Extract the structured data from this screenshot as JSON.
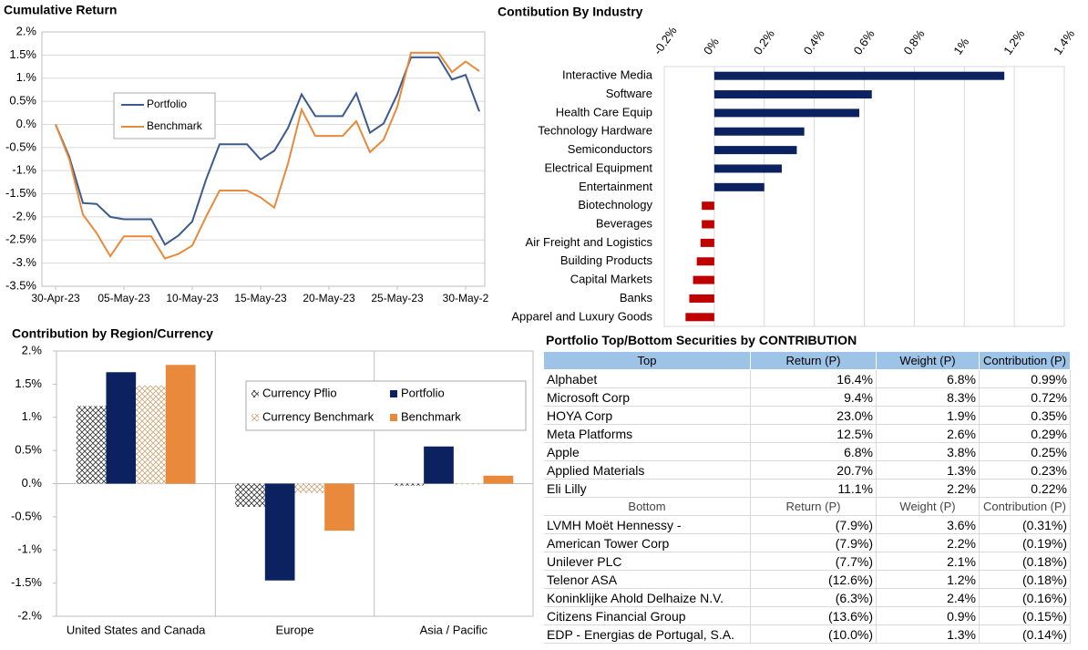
{
  "chart_data": [
    {
      "type": "line",
      "title": "Cumulative Return",
      "x": [
        "2023-04-30",
        "2023-05-01",
        "2023-05-02",
        "2023-05-03",
        "2023-05-04",
        "2023-05-05",
        "2023-05-06",
        "2023-05-07",
        "2023-05-08",
        "2023-05-09",
        "2023-05-10",
        "2023-05-11",
        "2023-05-12",
        "2023-05-13",
        "2023-05-14",
        "2023-05-15",
        "2023-05-16",
        "2023-05-17",
        "2023-05-18",
        "2023-05-19",
        "2023-05-20",
        "2023-05-21",
        "2023-05-22",
        "2023-05-23",
        "2023-05-24",
        "2023-05-25",
        "2023-05-26",
        "2023-05-27",
        "2023-05-28",
        "2023-05-29",
        "2023-05-30",
        "2023-05-31"
      ],
      "series": [
        {
          "name": "Portfolio",
          "color": "#3b5a8e",
          "values": [
            0,
            -0.7,
            -1.7,
            -1.72,
            -2.0,
            -2.05,
            -2.05,
            -2.05,
            -2.6,
            -2.4,
            -2.1,
            -1.2,
            -0.43,
            -0.43,
            -0.43,
            -0.76,
            -0.57,
            -0.08,
            0.65,
            0.18,
            0.18,
            0.18,
            0.67,
            -0.18,
            0.02,
            0.65,
            1.45,
            1.45,
            1.45,
            0.97,
            1.07,
            0.28
          ]
        },
        {
          "name": "Benchmark",
          "color": "#e8893b",
          "values": [
            0,
            -0.75,
            -1.95,
            -2.35,
            -2.85,
            -2.42,
            -2.42,
            -2.42,
            -2.9,
            -2.8,
            -2.62,
            -2.0,
            -1.43,
            -1.43,
            -1.43,
            -1.58,
            -1.8,
            -0.85,
            0.32,
            -0.25,
            -0.25,
            -0.25,
            0.07,
            -0.6,
            -0.33,
            0.38,
            1.55,
            1.55,
            1.55,
            1.13,
            1.36,
            1.15
          ]
        }
      ],
      "xlim": [
        "2023-04-29",
        "2023-05-31"
      ],
      "xticks": [
        {
          "value": "2023-04-30",
          "label": "30-Apr-23"
        },
        {
          "value": "2023-05-05",
          "label": "05-May-23"
        },
        {
          "value": "2023-05-10",
          "label": "10-May-23"
        },
        {
          "value": "2023-05-15",
          "label": "15-May-23"
        },
        {
          "value": "2023-05-20",
          "label": "20-May-23"
        },
        {
          "value": "2023-05-25",
          "label": "25-May-23"
        },
        {
          "value": "2023-05-30",
          "label": "30-May-2"
        }
      ],
      "ylim": [
        -3.5,
        2
      ],
      "yticks": [
        {
          "value": 2,
          "label": "2.%"
        },
        {
          "value": 1.5,
          "label": "1.5%"
        },
        {
          "value": 1,
          "label": "1.%"
        },
        {
          "value": 0.5,
          "label": "0.5%"
        },
        {
          "value": 0,
          "label": "0.%"
        },
        {
          "value": -0.5,
          "label": "-0.5%"
        },
        {
          "value": -1,
          "label": "-1.%"
        },
        {
          "value": -1.5,
          "label": "-1.5%"
        },
        {
          "value": -2,
          "label": "-2.%"
        },
        {
          "value": -2.5,
          "label": "-2.5%"
        },
        {
          "value": -3,
          "label": "-3.%"
        },
        {
          "value": -3.5,
          "label": "-3.5%"
        }
      ],
      "grid": true,
      "legend": "inside"
    },
    {
      "type": "hbar",
      "title": "Contibution By Industry",
      "categories": [
        "Interactive Media",
        "Software",
        "Health Care Equip",
        "Technology Hardware",
        "Semiconductors",
        "Electrical Equipment",
        "Entertainment",
        "Biotechnology",
        "Beverages",
        "Air Freight and Logistics",
        "Building Products",
        "Capital Markets",
        "Banks",
        "Apparel and Luxury Goods"
      ],
      "values": [
        1.16,
        0.63,
        0.58,
        0.36,
        0.33,
        0.27,
        0.2,
        -0.05,
        -0.05,
        -0.055,
        -0.07,
        -0.085,
        -0.1,
        -0.115
      ],
      "positive_color": "#0b2160",
      "negative_color": "#c00000",
      "xlim": [
        -0.2,
        1.4
      ],
      "xticks": [
        {
          "value": -0.2,
          "label": "-0.2%"
        },
        {
          "value": 0,
          "label": "0%"
        },
        {
          "value": 0.2,
          "label": "0.2%"
        },
        {
          "value": 0.4,
          "label": "0.4%"
        },
        {
          "value": 0.6,
          "label": "0.6%"
        },
        {
          "value": 0.8,
          "label": "0.8%"
        },
        {
          "value": 1,
          "label": "1%"
        },
        {
          "value": 1.2,
          "label": "1.2%"
        },
        {
          "value": 1.4,
          "label": "1.4%"
        }
      ],
      "grid": true
    },
    {
      "type": "grouped_bar",
      "title": "Contribution by Region/Currency",
      "categories": [
        "United States and Canada",
        "Europe",
        "Asia / Pacific"
      ],
      "series": [
        {
          "name": "Currency Pflio",
          "color": "#333333",
          "pattern": "crosshatch",
          "values": [
            1.17,
            -0.35,
            -0.03
          ]
        },
        {
          "name": "Portfolio",
          "color": "#0b2160",
          "values": [
            1.68,
            -1.46,
            0.56
          ]
        },
        {
          "name": "Currency Benchmark",
          "color": "#c9a679",
          "pattern": "crosshatch",
          "values": [
            1.48,
            -0.14,
            -0.01
          ]
        },
        {
          "name": "Benchmark",
          "color": "#e8893b",
          "values": [
            1.79,
            -0.71,
            0.12
          ]
        }
      ],
      "ylim": [
        -2,
        2
      ],
      "yticks": [
        {
          "value": 2,
          "label": "2.%"
        },
        {
          "value": 1.5,
          "label": "1.5%"
        },
        {
          "value": 1,
          "label": "1.%"
        },
        {
          "value": 0.5,
          "label": "0.5%"
        },
        {
          "value": 0,
          "label": "0.%"
        },
        {
          "value": -0.5,
          "label": "-0.5%"
        },
        {
          "value": -1,
          "label": "-1.%"
        },
        {
          "value": -1.5,
          "label": "-1.5%"
        },
        {
          "value": -2,
          "label": "-2.%"
        }
      ],
      "legend": "inside"
    }
  ],
  "table": {
    "title": "Portfolio Top/Bottom Securities by CONTRIBUTION",
    "top_header": [
      "Top",
      "Return (P)",
      "Weight (P)",
      "Contribution (P)"
    ],
    "top_rows": [
      [
        "Alphabet",
        "16.4%",
        "6.8%",
        "0.99%"
      ],
      [
        "Microsoft Corp",
        "9.4%",
        "8.3%",
        "0.72%"
      ],
      [
        "HOYA Corp",
        "23.0%",
        "1.9%",
        "0.35%"
      ],
      [
        "Meta Platforms",
        "12.5%",
        "2.6%",
        "0.29%"
      ],
      [
        "Apple",
        "6.8%",
        "3.8%",
        "0.25%"
      ],
      [
        "Applied Materials",
        "20.7%",
        "1.3%",
        "0.23%"
      ],
      [
        "Eli Lilly",
        "11.1%",
        "2.2%",
        "0.22%"
      ]
    ],
    "bottom_header": [
      "Bottom",
      "Return (P)",
      "Weight (P)",
      "Contribution (P)"
    ],
    "bottom_rows": [
      [
        "LVMH Moët Hennessy -",
        "(7.9%)",
        "3.6%",
        "(0.31%)"
      ],
      [
        "American Tower Corp",
        "(7.9%)",
        "2.2%",
        "(0.19%)"
      ],
      [
        "Unilever PLC",
        "(7.7%)",
        "2.1%",
        "(0.18%)"
      ],
      [
        "Telenor ASA",
        "(12.6%)",
        "1.2%",
        "(0.18%)"
      ],
      [
        "Koninklijke Ahold Delhaize N.V.",
        "(6.3%)",
        "2.4%",
        "(0.16%)"
      ],
      [
        "Citizens Financial Group",
        "(13.6%)",
        "0.9%",
        "(0.15%)"
      ],
      [
        "EDP - Energias de Portugal, S.A.",
        "(10.0%)",
        "1.3%",
        "(0.14%)"
      ]
    ]
  }
}
